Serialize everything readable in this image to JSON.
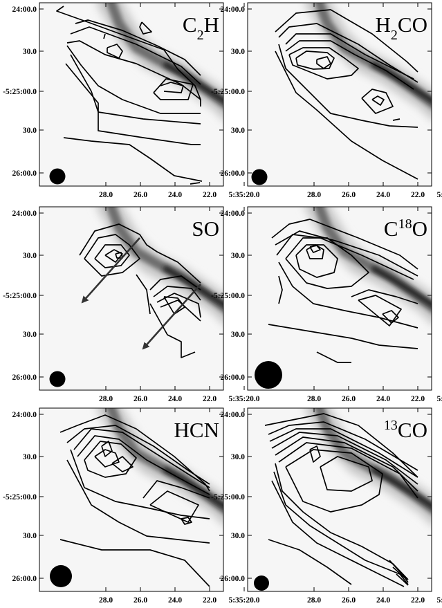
{
  "figure": {
    "panels": [
      {
        "id": "c2h",
        "label_main": "C",
        "label_sub": "2",
        "label_post": "H",
        "label_sup": ""
      },
      {
        "id": "h2co",
        "label_main": "H",
        "label_sub": "2",
        "label_post": "CO",
        "label_sup": ""
      },
      {
        "id": "so",
        "label_main": "SO",
        "label_sub": "",
        "label_post": "",
        "label_sup": ""
      },
      {
        "id": "c18o",
        "label_main": "C",
        "label_sub": "",
        "label_post": "O",
        "label_sup": "18"
      },
      {
        "id": "hcn",
        "label_main": "HCN",
        "label_sub": "",
        "label_post": "",
        "label_sup": ""
      },
      {
        "id": "13co",
        "label_main": "",
        "label_sub": "",
        "label_post": "CO",
        "label_sup": "13"
      }
    ],
    "x_tick_labels": [
      "28.0",
      "26.0",
      "24.0",
      "22.0",
      "5:35:20.0"
    ],
    "y_tick_labels": [
      "24:00.0",
      "30.0",
      "-5:25:00.0",
      "30.0",
      "26:00.0"
    ],
    "beam": "filled-circle-beam",
    "background": "grayscale-filament",
    "arrows_panel": "so"
  }
}
